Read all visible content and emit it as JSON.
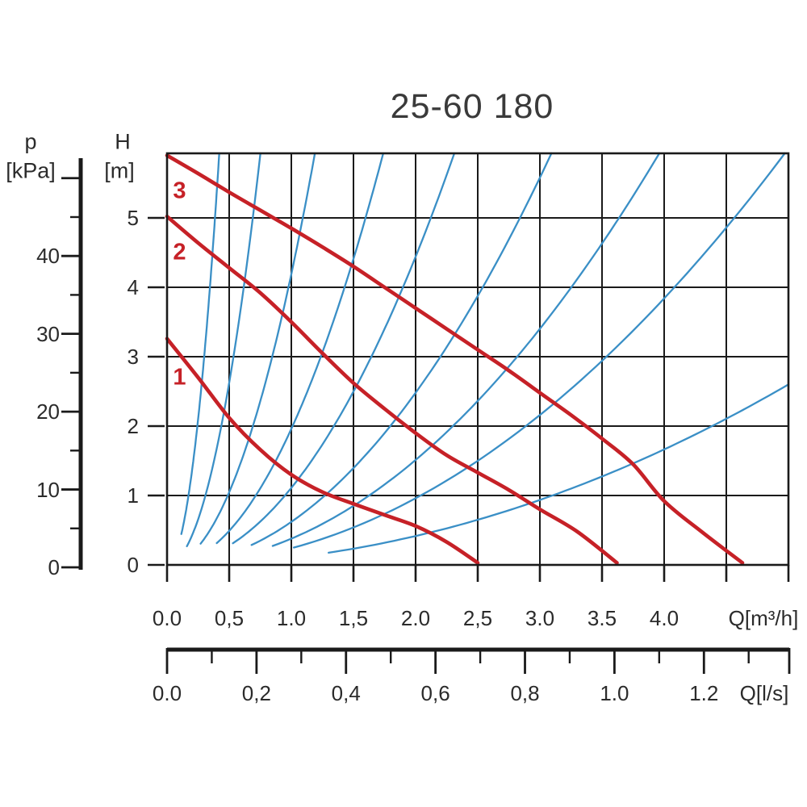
{
  "title": "25-60 180",
  "colors": {
    "pump_red": "#c62127",
    "system_blue": "#3a8fc6",
    "line_black": "#1a1a1a",
    "text": "#2b2b2b"
  },
  "left_axis": {
    "symbol": "p",
    "unit": "[kPa]",
    "tick_labels": [
      "0",
      "10",
      "20",
      "30",
      "40"
    ],
    "labeled_values": [
      0,
      10,
      20,
      30,
      40
    ],
    "unlabeled_major_values": [
      50
    ],
    "minor_values": [
      5,
      15,
      25,
      35,
      45
    ]
  },
  "head_axis": {
    "symbol": "H",
    "unit": "[m]",
    "tick_labels": [
      "0",
      "1",
      "2",
      "3",
      "4",
      "5"
    ],
    "labeled_values": [
      0,
      1,
      2,
      3,
      4,
      5
    ]
  },
  "x_axis": {
    "unit_label": "Q[m³/h]",
    "tick_labels": [
      "0.0",
      "0,5",
      "1.0",
      "1,5",
      "2.0",
      "2,5",
      "3.0",
      "3.5",
      "4.0"
    ],
    "labeled_values": [
      0,
      0.5,
      1.0,
      1.5,
      2.0,
      2.5,
      3.0,
      3.5,
      4.0
    ],
    "unlabeled_values": [
      4.5,
      5.0
    ]
  },
  "ls_axis": {
    "unit_label": "Q[l/s]",
    "tick_labels": [
      "0.0",
      "0,2",
      "0,4",
      "0,6",
      "0,8",
      "1.0",
      "1.2"
    ],
    "labeled_values": [
      0,
      0.2,
      0.4,
      0.6,
      0.8,
      1.0,
      1.2
    ],
    "minor_values": [
      0.1,
      0.3,
      0.5,
      0.7,
      0.9,
      1.1,
      1.3
    ]
  },
  "chart_data": {
    "type": "line",
    "title": "25-60 180",
    "xlabel": "Q[m³/h]",
    "ylabel": "H [m]",
    "xlim": [
      0,
      5.0
    ],
    "ylim": [
      0,
      5.93
    ],
    "grid": {
      "x_step": 0.5,
      "y_step": 1.0,
      "on": true
    },
    "pump_curves": [
      {
        "name": "3",
        "label_at": [
          0.1,
          5.38
        ],
        "points": [
          [
            0,
            5.9
          ],
          [
            0.25,
            5.64
          ],
          [
            0.5,
            5.37
          ],
          [
            0.75,
            5.11
          ],
          [
            1.0,
            4.85
          ],
          [
            1.25,
            4.58
          ],
          [
            1.5,
            4.3
          ],
          [
            1.75,
            4.0
          ],
          [
            2.0,
            3.7
          ],
          [
            2.25,
            3.4
          ],
          [
            2.5,
            3.1
          ],
          [
            2.75,
            2.8
          ],
          [
            3.0,
            2.48
          ],
          [
            3.25,
            2.16
          ],
          [
            3.5,
            1.82
          ],
          [
            3.75,
            1.45
          ],
          [
            4.0,
            0.92
          ],
          [
            4.3,
            0.48
          ],
          [
            4.63,
            0.03
          ]
        ]
      },
      {
        "name": "2",
        "label_at": [
          0.1,
          4.5
        ],
        "points": [
          [
            0,
            5.02
          ],
          [
            0.25,
            4.64
          ],
          [
            0.5,
            4.28
          ],
          [
            0.75,
            3.92
          ],
          [
            1.0,
            3.5
          ],
          [
            1.25,
            3.05
          ],
          [
            1.5,
            2.62
          ],
          [
            1.75,
            2.25
          ],
          [
            2.0,
            1.9
          ],
          [
            2.25,
            1.58
          ],
          [
            2.5,
            1.33
          ],
          [
            2.75,
            1.08
          ],
          [
            3.0,
            0.8
          ],
          [
            3.3,
            0.48
          ],
          [
            3.62,
            0.03
          ]
        ]
      },
      {
        "name": "1",
        "label_at": [
          0.1,
          2.7
        ],
        "points": [
          [
            0,
            3.26
          ],
          [
            0.25,
            2.7
          ],
          [
            0.5,
            2.12
          ],
          [
            0.75,
            1.66
          ],
          [
            1.0,
            1.3
          ],
          [
            1.25,
            1.05
          ],
          [
            1.5,
            0.88
          ],
          [
            1.75,
            0.72
          ],
          [
            2.0,
            0.56
          ],
          [
            2.25,
            0.33
          ],
          [
            2.5,
            0.03
          ]
        ]
      }
    ],
    "system_curves": [
      {
        "k": 33.6,
        "q_start": 0.115
      },
      {
        "k": 10.5,
        "q_start": 0.16
      },
      {
        "k": 4.19,
        "q_start": 0.27
      },
      {
        "k": 1.96,
        "q_start": 0.4
      },
      {
        "k": 1.11,
        "q_start": 0.53
      },
      {
        "k": 0.62,
        "q_start": 0.68
      },
      {
        "k": 0.378,
        "q_start": 0.85
      },
      {
        "k": 0.24,
        "q_start": 1.02
      },
      {
        "k": 0.104,
        "q_start": 1.3
      }
    ],
    "system_curve_model": "H = k * Q^2 (Q in m3/h, H in m)"
  }
}
